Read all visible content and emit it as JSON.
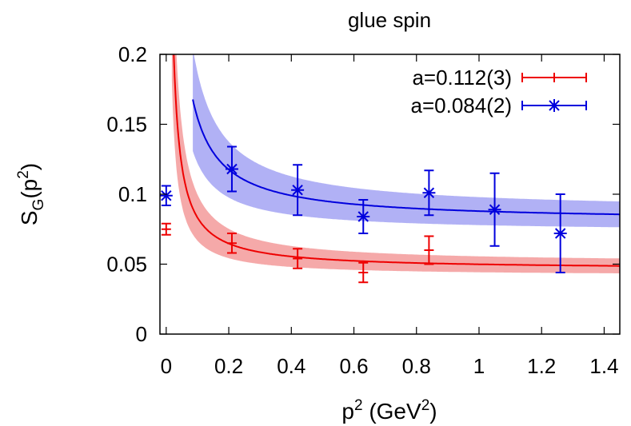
{
  "chart_data": {
    "type": "scatter",
    "title": "glue spin",
    "xlabel": {
      "base": "p",
      "sup": "2",
      "unit_open": " (GeV",
      "unit_sup": "2",
      "unit_close": ")"
    },
    "ylabel": {
      "base": "S",
      "sub": "G",
      "open": "(p",
      "sup": "2",
      "close": ")"
    },
    "xlim": [
      -0.02,
      1.45
    ],
    "ylim": [
      0,
      0.2
    ],
    "xticks": [
      0,
      0.2,
      0.4,
      0.6,
      0.8,
      1,
      1.2,
      1.4
    ],
    "xtick_labels": [
      "0",
      "0.2",
      "0.4",
      "0.6",
      "0.8",
      "1",
      "1.2",
      "1.4"
    ],
    "yticks": [
      0,
      0.05,
      0.1,
      0.15,
      0.2
    ],
    "ytick_labels": [
      "0",
      "0.05",
      "0.1",
      "0.15",
      "0.2"
    ],
    "grid": false,
    "legend": "top-right",
    "series": [
      {
        "name": "a=0.112(3)",
        "color": "#ee0000",
        "band_color": "#f4a0a0",
        "marker": "plus",
        "points": [
          {
            "x": 0,
            "y": 0.075,
            "err": 0.004
          },
          {
            "x": 0.21,
            "y": 0.065,
            "err": 0.007
          },
          {
            "x": 0.42,
            "y": 0.054,
            "err": 0.007
          },
          {
            "x": 0.63,
            "y": 0.044,
            "err": 0.007
          },
          {
            "x": 0.84,
            "y": 0.06,
            "err": 0.01
          }
        ],
        "fit": {
          "form": "A + B/x",
          "A": 0.0462,
          "B": 0.00371,
          "band_A": 0.0045,
          "band_B": 0.0012,
          "x_start": 0.018
        }
      },
      {
        "name": "a=0.084(2)",
        "color": "#0000dd",
        "band_color": "#a8a8f4",
        "marker": "star",
        "points": [
          {
            "x": 0,
            "y": 0.099,
            "err": 0.007
          },
          {
            "x": 0.21,
            "y": 0.118,
            "err": 0.016
          },
          {
            "x": 0.42,
            "y": 0.103,
            "err": 0.018
          },
          {
            "x": 0.63,
            "y": 0.084,
            "err": 0.012
          },
          {
            "x": 0.84,
            "y": 0.101,
            "err": 0.016
          },
          {
            "x": 1.05,
            "y": 0.089,
            "err": 0.026
          },
          {
            "x": 1.26,
            "y": 0.072,
            "err": 0.028
          }
        ],
        "fit": {
          "form": "A + B/x",
          "A": 0.0805,
          "B": 0.00742,
          "band_A": 0.0075,
          "band_B": 0.0025,
          "x_start": 0.085
        }
      }
    ]
  }
}
